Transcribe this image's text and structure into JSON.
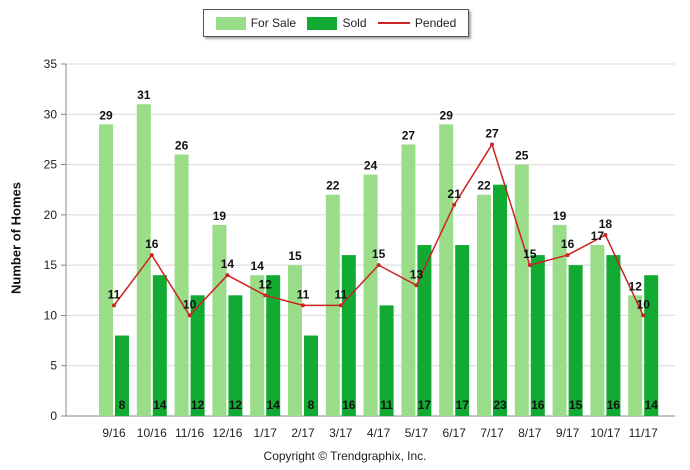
{
  "legend": {
    "for_sale": "For Sale",
    "sold": "Sold",
    "pended": "Pended"
  },
  "copyright": "Copyright © Trendgraphix, Inc.",
  "colors": {
    "for_sale": "#99dd88",
    "sold": "#11aa33",
    "pended": "#cc2222",
    "grid": "#d8d8d8",
    "axis": "#888888"
  },
  "chart_data": {
    "type": "bar",
    "categories": [
      "9/16",
      "10/16",
      "11/16",
      "12/16",
      "1/17",
      "2/17",
      "3/17",
      "4/17",
      "5/17",
      "6/17",
      "7/17",
      "8/17",
      "9/17",
      "10/17",
      "11/17"
    ],
    "series": [
      {
        "name": "For Sale",
        "type": "bar",
        "values": [
          29,
          31,
          26,
          19,
          14,
          15,
          22,
          24,
          27,
          29,
          22,
          25,
          19,
          17,
          12
        ]
      },
      {
        "name": "Sold",
        "type": "bar",
        "values": [
          8,
          14,
          12,
          12,
          14,
          8,
          16,
          11,
          17,
          17,
          23,
          16,
          15,
          16,
          14
        ]
      },
      {
        "name": "Pended",
        "type": "line",
        "values": [
          11,
          16,
          10,
          14,
          12,
          11,
          11,
          15,
          13,
          21,
          27,
          15,
          16,
          18,
          10
        ]
      }
    ],
    "ylabel": "Number of Homes",
    "xlabel": "",
    "ylim": [
      0,
      35
    ],
    "yticks": [
      0,
      5,
      10,
      15,
      20,
      25,
      30,
      35
    ],
    "grid": true,
    "legend_position": "top-center",
    "data_labels": true
  }
}
